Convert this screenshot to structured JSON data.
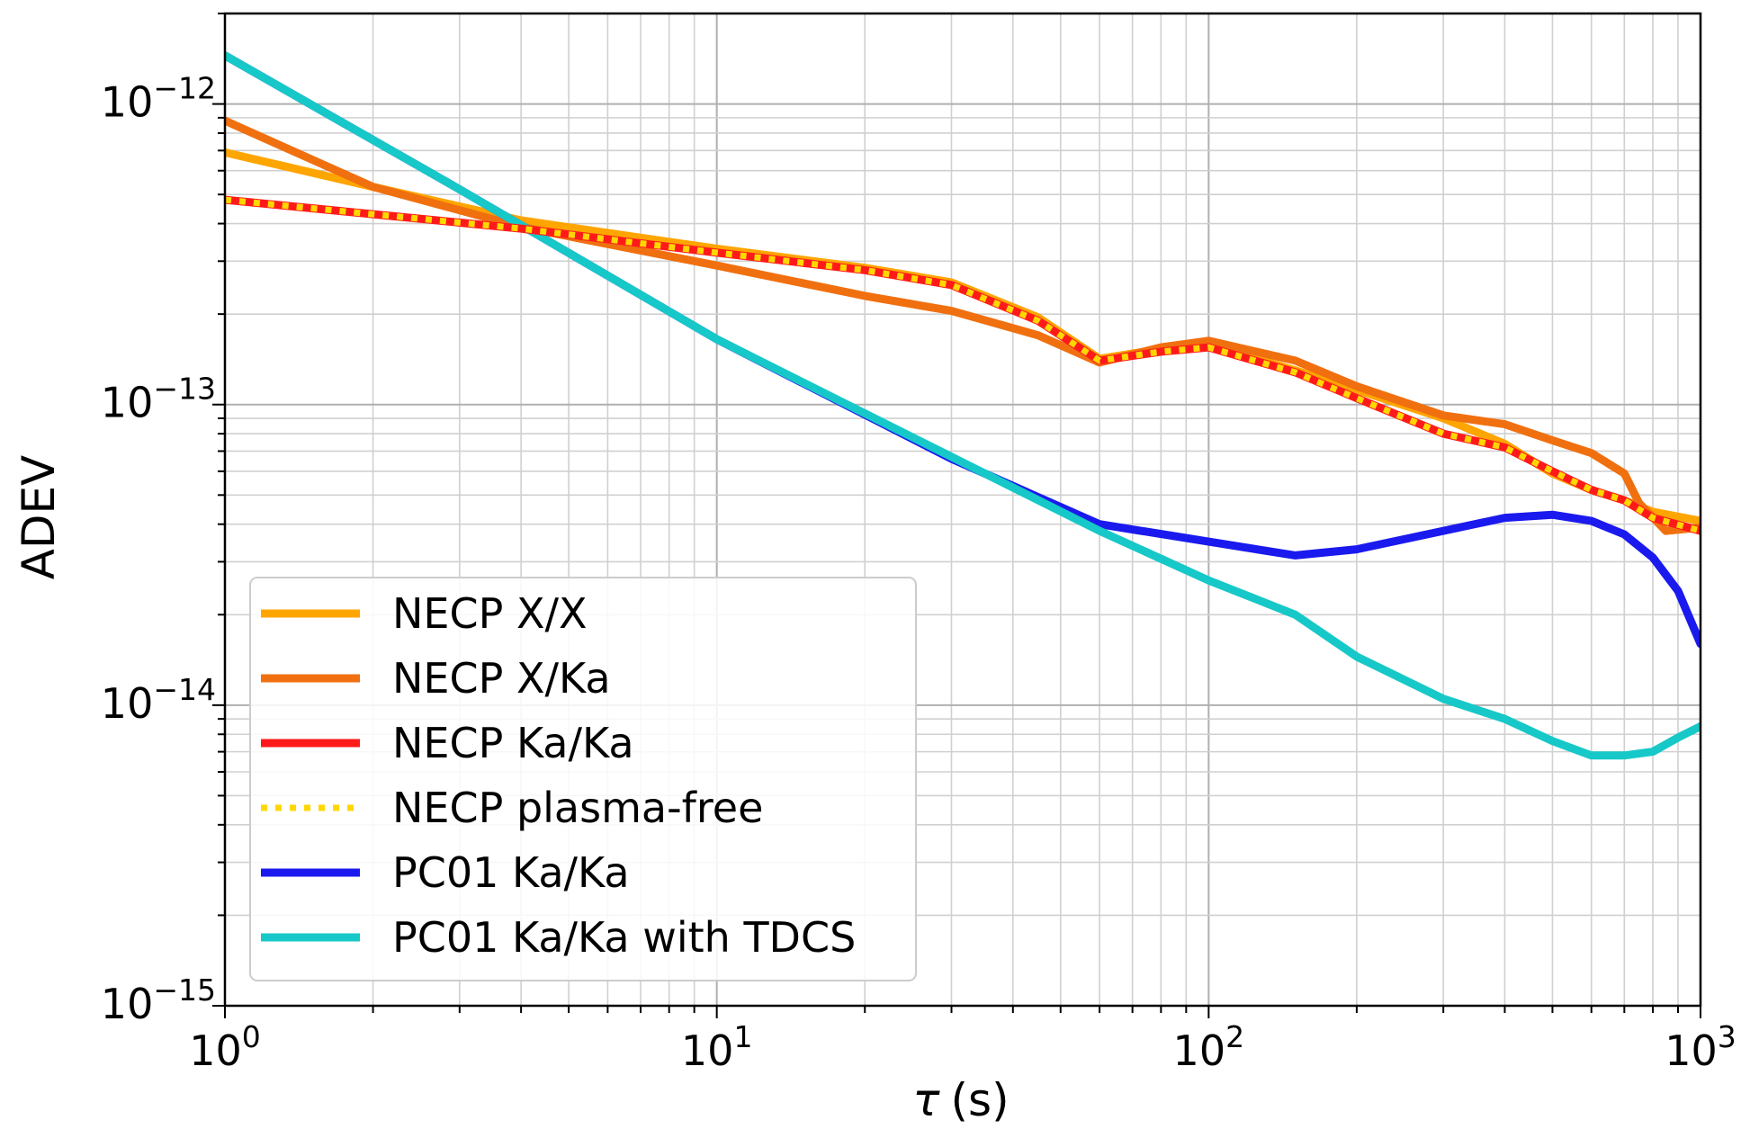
{
  "chart_data": {
    "type": "line",
    "xscale": "log",
    "yscale": "log",
    "xlim": [
      1,
      1000
    ],
    "ylim": [
      1e-15,
      2e-12
    ],
    "xlabel_symbol": "τ",
    "xlabel_unit": "(s)",
    "ylabel": "ADEV",
    "grid": true,
    "legend_position": "lower-left",
    "x_ticks": [
      {
        "value": 1,
        "base": "10",
        "exp": "0"
      },
      {
        "value": 10,
        "base": "10",
        "exp": "1"
      },
      {
        "value": 100,
        "base": "10",
        "exp": "2"
      },
      {
        "value": 1000,
        "base": "10",
        "exp": "3"
      }
    ],
    "y_ticks": [
      {
        "value": 1e-12,
        "base": "10",
        "exp": "−12"
      },
      {
        "value": 1e-13,
        "base": "10",
        "exp": "−13"
      },
      {
        "value": 1e-14,
        "base": "10",
        "exp": "−14"
      },
      {
        "value": 1e-15,
        "base": "10",
        "exp": "−15"
      }
    ],
    "series": [
      {
        "name": "NECP X/X",
        "color": "#ffa500",
        "style": "solid",
        "points": [
          [
            1,
            6.9e-13
          ],
          [
            2,
            5.3e-13
          ],
          [
            4,
            4.1e-13
          ],
          [
            10,
            3.3e-13
          ],
          [
            20,
            2.85e-13
          ],
          [
            30,
            2.55e-13
          ],
          [
            45,
            1.95e-13
          ],
          [
            60,
            1.42e-13
          ],
          [
            80,
            1.53e-13
          ],
          [
            100,
            1.58e-13
          ],
          [
            150,
            1.3e-13
          ],
          [
            200,
            1.12e-13
          ],
          [
            300,
            9e-14
          ],
          [
            400,
            7.4e-14
          ],
          [
            500,
            5.9e-14
          ],
          [
            600,
            5.2e-14
          ],
          [
            700,
            4.8e-14
          ],
          [
            800,
            4.4e-14
          ],
          [
            1000,
            4.1e-14
          ]
        ]
      },
      {
        "name": "NECP X/Ka",
        "color": "#f07010",
        "style": "solid",
        "points": [
          [
            1,
            8.8e-13
          ],
          [
            2,
            5.3e-13
          ],
          [
            4,
            3.9e-13
          ],
          [
            10,
            2.9e-13
          ],
          [
            20,
            2.3e-13
          ],
          [
            30,
            2.05e-13
          ],
          [
            45,
            1.7e-13
          ],
          [
            60,
            1.38e-13
          ],
          [
            80,
            1.55e-13
          ],
          [
            100,
            1.63e-13
          ],
          [
            150,
            1.4e-13
          ],
          [
            200,
            1.15e-13
          ],
          [
            300,
            9.2e-14
          ],
          [
            400,
            8.6e-14
          ],
          [
            500,
            7.6e-14
          ],
          [
            600,
            6.9e-14
          ],
          [
            700,
            5.9e-14
          ],
          [
            750,
            4.7e-14
          ],
          [
            850,
            3.8e-14
          ],
          [
            1000,
            3.9e-14
          ]
        ]
      },
      {
        "name": "NECP Ka/Ka",
        "color": "#ff1a1a",
        "style": "solid",
        "points": [
          [
            1,
            4.8e-13
          ],
          [
            2,
            4.3e-13
          ],
          [
            4,
            3.85e-13
          ],
          [
            10,
            3.2e-13
          ],
          [
            20,
            2.8e-13
          ],
          [
            30,
            2.5e-13
          ],
          [
            45,
            1.9e-13
          ],
          [
            60,
            1.4e-13
          ],
          [
            80,
            1.5e-13
          ],
          [
            100,
            1.55e-13
          ],
          [
            150,
            1.28e-13
          ],
          [
            200,
            1.05e-13
          ],
          [
            300,
            8e-14
          ],
          [
            400,
            7.2e-14
          ],
          [
            500,
            6e-14
          ],
          [
            600,
            5.2e-14
          ],
          [
            700,
            4.8e-14
          ],
          [
            800,
            4.2e-14
          ],
          [
            1000,
            3.8e-14
          ]
        ]
      },
      {
        "name": "NECP plasma-free",
        "color": "#ffd700",
        "style": "dotted",
        "points": [
          [
            1,
            4.8e-13
          ],
          [
            2,
            4.3e-13
          ],
          [
            4,
            3.85e-13
          ],
          [
            10,
            3.2e-13
          ],
          [
            20,
            2.8e-13
          ],
          [
            30,
            2.5e-13
          ],
          [
            45,
            1.9e-13
          ],
          [
            60,
            1.4e-13
          ],
          [
            80,
            1.5e-13
          ],
          [
            100,
            1.55e-13
          ],
          [
            150,
            1.28e-13
          ],
          [
            200,
            1.05e-13
          ],
          [
            300,
            8e-14
          ],
          [
            400,
            7.2e-14
          ],
          [
            500,
            6e-14
          ],
          [
            600,
            5.2e-14
          ],
          [
            700,
            4.8e-14
          ],
          [
            800,
            4.2e-14
          ],
          [
            1000,
            3.8e-14
          ]
        ]
      },
      {
        "name": "PC01 Ka/Ka",
        "color": "#1a1aee",
        "style": "solid",
        "points": [
          [
            1,
            1.45e-12
          ],
          [
            3,
            5.2e-13
          ],
          [
            10,
            1.65e-13
          ],
          [
            30,
            6.6e-14
          ],
          [
            60,
            4e-14
          ],
          [
            100,
            3.5e-14
          ],
          [
            150,
            3.15e-14
          ],
          [
            200,
            3.3e-14
          ],
          [
            300,
            3.8e-14
          ],
          [
            400,
            4.2e-14
          ],
          [
            500,
            4.3e-14
          ],
          [
            600,
            4.1e-14
          ],
          [
            700,
            3.7e-14
          ],
          [
            800,
            3.1e-14
          ],
          [
            900,
            2.4e-14
          ],
          [
            1000,
            1.6e-14
          ]
        ]
      },
      {
        "name": "PC01 Ka/Ka with TDCS",
        "color": "#17c8c8",
        "style": "solid",
        "points": [
          [
            1,
            1.45e-12
          ],
          [
            3,
            5.2e-13
          ],
          [
            10,
            1.65e-13
          ],
          [
            30,
            6.7e-14
          ],
          [
            60,
            3.8e-14
          ],
          [
            100,
            2.6e-14
          ],
          [
            150,
            2e-14
          ],
          [
            200,
            1.45e-14
          ],
          [
            300,
            1.05e-14
          ],
          [
            400,
            9e-15
          ],
          [
            500,
            7.6e-15
          ],
          [
            600,
            6.8e-15
          ],
          [
            700,
            6.8e-15
          ],
          [
            800,
            7e-15
          ],
          [
            900,
            7.8e-15
          ],
          [
            1000,
            8.5e-15
          ]
        ]
      }
    ]
  }
}
